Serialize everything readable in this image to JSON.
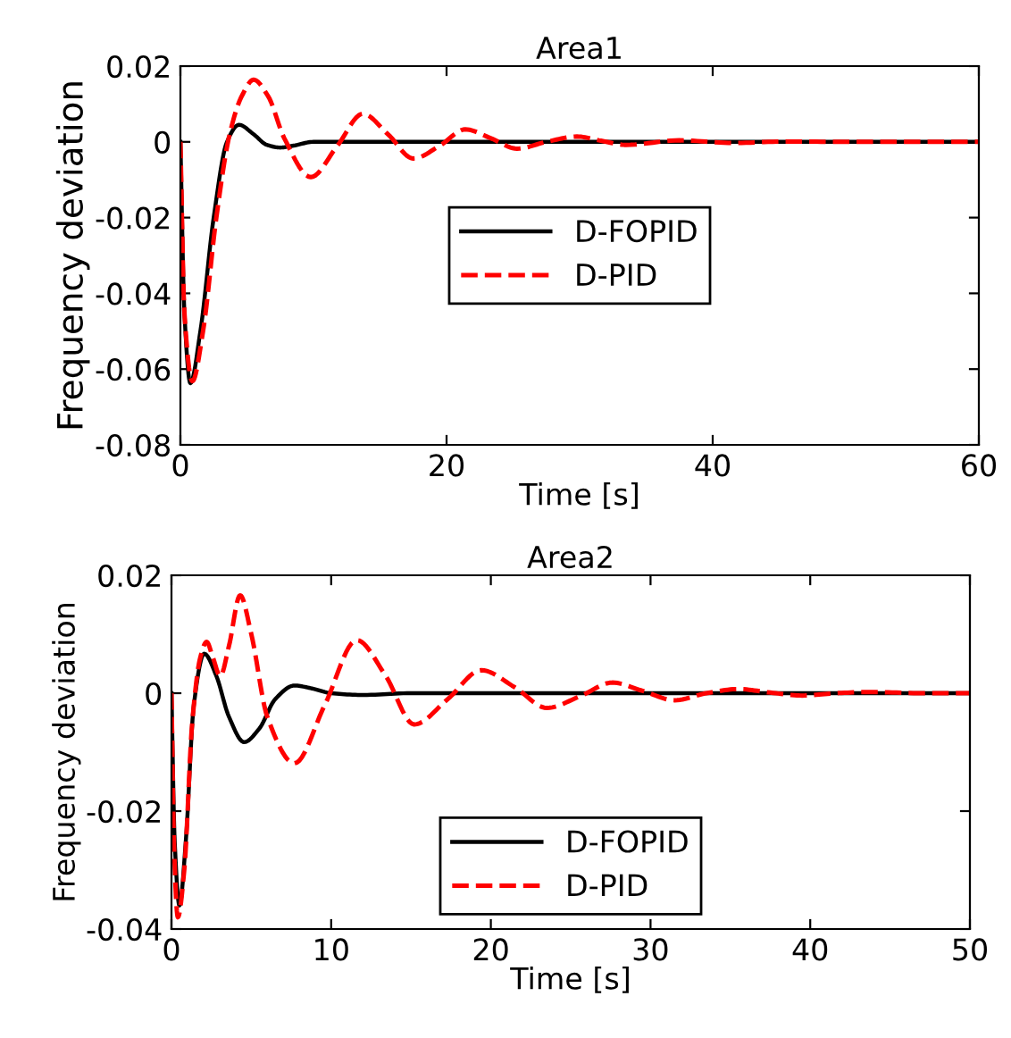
{
  "chart_data": [
    {
      "type": "line",
      "title": "Area1",
      "xlabel": "Time [s]",
      "ylabel": "Frequency deviation",
      "xlim": [
        0,
        60
      ],
      "ylim": [
        -0.08,
        0.02
      ],
      "xticks": [
        0,
        20,
        40,
        60
      ],
      "yticks": [
        -0.08,
        -0.06,
        -0.04,
        -0.02,
        0,
        0.02
      ],
      "grid": false,
      "legend": "center",
      "series": [
        {
          "name": "D-FOPID",
          "color": "#000000",
          "line_style": "solid",
          "x": [
            0,
            0.3,
            0.75,
            1.5,
            2.5,
            3.5,
            4.4,
            5.5,
            6.5,
            7.5,
            8.5,
            10,
            15,
            20,
            30,
            40,
            50,
            60
          ],
          "values": [
            0,
            -0.045,
            -0.0637,
            -0.05,
            -0.02,
            0,
            0.0045,
            0.002,
            -0.0008,
            -0.0015,
            -0.001,
            0,
            0,
            0,
            0,
            0,
            0,
            0
          ]
        },
        {
          "name": "D-PID",
          "color": "#ff0000",
          "line_style": "dashed",
          "x": [
            0,
            0.3,
            0.9,
            1.7,
            2.7,
            3.7,
            4.6,
            5.5,
            6.6,
            7.8,
            9.8,
            11.8,
            13.7,
            15.6,
            17.5,
            19.5,
            21.4,
            23.3,
            25.3,
            27.5,
            29.8,
            31.6,
            33.5,
            37.5,
            41.5,
            45.5,
            50,
            55,
            60
          ],
          "values": [
            0,
            -0.045,
            -0.0632,
            -0.05,
            -0.02,
            0.002,
            0.012,
            0.0164,
            0.012,
            0.001,
            -0.0093,
            -0.001,
            0.0074,
            0.002,
            -0.0044,
            -0.001,
            0.0033,
            0.001,
            -0.0018,
            0,
            0.0014,
            0.0003,
            -0.0008,
            0.0004,
            -0.0003,
            0.0001,
            0,
            0,
            0
          ]
        }
      ]
    },
    {
      "type": "line",
      "title": "Area2",
      "xlabel": "Time [s]",
      "ylabel": "Frequency deviation",
      "xlim": [
        0,
        50
      ],
      "ylim": [
        -0.04,
        0.02
      ],
      "xticks": [
        0,
        10,
        20,
        30,
        40,
        50
      ],
      "yticks": [
        -0.04,
        -0.02,
        0,
        0.02
      ],
      "grid": false,
      "legend": "bottom",
      "series": [
        {
          "name": "D-FOPID",
          "color": "#000000",
          "line_style": "solid",
          "x": [
            0,
            0.2,
            0.5,
            0.9,
            1.4,
            2.05,
            2.8,
            3.6,
            4.55,
            5.5,
            6.5,
            7.7,
            8.8,
            10,
            12,
            15,
            20,
            30,
            40,
            50
          ],
          "values": [
            0,
            -0.025,
            -0.036,
            -0.025,
            -0.002,
            0.0067,
            0.003,
            -0.004,
            -0.0083,
            -0.006,
            -0.001,
            0.0013,
            0.0008,
            0,
            -0.0003,
            0,
            0,
            0,
            0,
            0
          ]
        },
        {
          "name": "D-PID",
          "color": "#ff0000",
          "line_style": "dashed",
          "x": [
            0,
            0.15,
            0.4,
            0.8,
            1.3,
            1.8,
            2.2,
            2.6,
            3.05,
            3.6,
            4.3,
            5.0,
            6.0,
            7.7,
            9.6,
            11.6,
            13.4,
            15.2,
            17.3,
            19.4,
            21.5,
            23.5,
            25.6,
            27.6,
            29.5,
            31.5,
            33.5,
            35.5,
            37.5,
            39.5,
            41.6,
            43.8,
            47,
            50
          ],
          "values": [
            0,
            -0.025,
            -0.038,
            -0.03,
            -0.005,
            0.006,
            0.0087,
            0.006,
            0.0029,
            0.008,
            0.0166,
            0.01,
            -0.004,
            -0.0119,
            -0.002,
            0.009,
            0.003,
            -0.0053,
            -0.001,
            0.0039,
            0.001,
            -0.0025,
            -0.0005,
            0.0018,
            0.0004,
            -0.0012,
            0,
            0.0007,
            0.0001,
            -0.0004,
            0,
            0.0002,
            0,
            0
          ]
        }
      ]
    }
  ]
}
